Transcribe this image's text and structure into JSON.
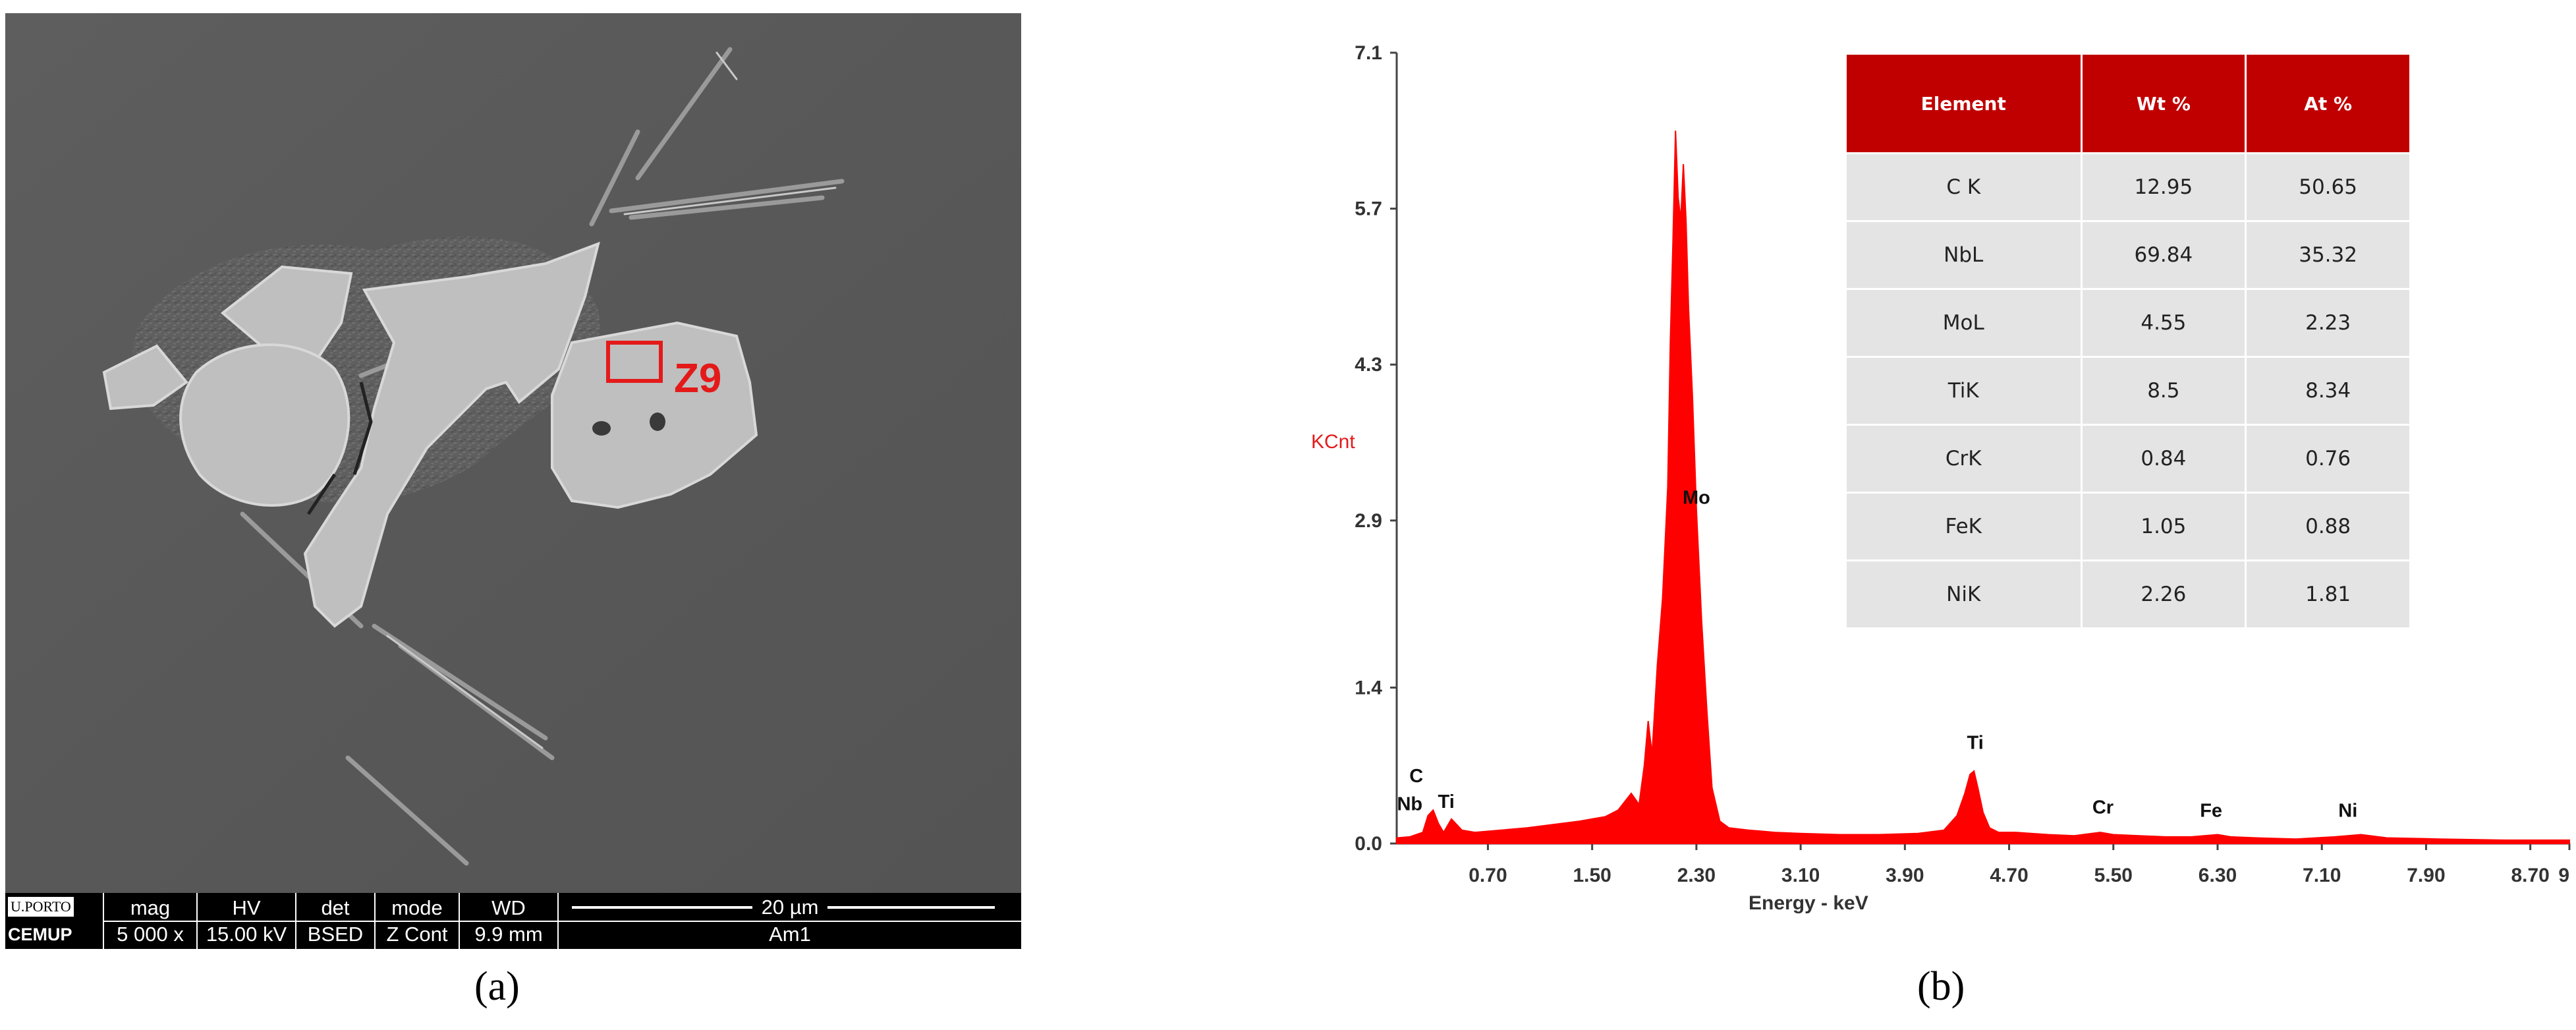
{
  "panel_a": {
    "caption": "(a)",
    "region_label": "Z9",
    "databar": {
      "logo_top": "U.PORTO",
      "logo_bottom": "CEMUP",
      "cells": [
        {
          "header": "mag",
          "value": "5 000 x"
        },
        {
          "header": "HV",
          "value": "15.00 kV"
        },
        {
          "header": "det",
          "value": "BSED"
        },
        {
          "header": "mode",
          "value": "Z Cont"
        },
        {
          "header": "WD",
          "value": "9.9 mm"
        }
      ],
      "scale": "20 µm",
      "sample": "Am1"
    }
  },
  "panel_b": {
    "caption": "(b)",
    "table": {
      "headers": [
        "Element",
        "Wt %",
        "At %"
      ],
      "rows": [
        [
          "C K",
          "12.95",
          "50.65"
        ],
        [
          "NbL",
          "69.84",
          "35.32"
        ],
        [
          "MoL",
          "4.55",
          "2.23"
        ],
        [
          "TiK",
          "8.5",
          "8.34"
        ],
        [
          "CrK",
          "0.84",
          "0.76"
        ],
        [
          "FeK",
          "1.05",
          "0.88"
        ],
        [
          "NiK",
          "2.26",
          "1.81"
        ]
      ]
    }
  },
  "chart_data": {
    "type": "area",
    "title": "",
    "xlabel": "Energy - keV",
    "ylabel": "KCnt",
    "xlim": [
      0,
      9
    ],
    "ylim": [
      0,
      7.1
    ],
    "x_ticks": [
      "0.70",
      "1.50",
      "2.30",
      "3.10",
      "3.90",
      "4.70",
      "5.50",
      "6.30",
      "7.10",
      "7.90",
      "8.70",
      "9"
    ],
    "y_ticks": [
      "0.0",
      "1.4",
      "2.9",
      "4.3",
      "5.7",
      "7.1"
    ],
    "color": "#ff0000",
    "series": [
      {
        "x": [
          0.0,
          0.1,
          0.2,
          0.24,
          0.28,
          0.32,
          0.36,
          0.42,
          0.5,
          0.6,
          0.8,
          1.0,
          1.2,
          1.4,
          1.6,
          1.7,
          1.8,
          1.86,
          1.9,
          1.93,
          1.96,
          2.0,
          2.04,
          2.08,
          2.1,
          2.12,
          2.14,
          2.16,
          2.18,
          2.2,
          2.22,
          2.24,
          2.27,
          2.3,
          2.34,
          2.38,
          2.42,
          2.48,
          2.55,
          2.7,
          2.9,
          3.1,
          3.4,
          3.7,
          4.0,
          4.2,
          4.3,
          4.36,
          4.4,
          4.43,
          4.46,
          4.5,
          4.55,
          4.62,
          4.75,
          5.0,
          5.2,
          5.4,
          5.5,
          5.7,
          5.9,
          6.1,
          6.3,
          6.4,
          6.6,
          6.9,
          7.2,
          7.4,
          7.6,
          8.0,
          8.5,
          9.0
        ],
        "y": [
          0.05,
          0.06,
          0.1,
          0.25,
          0.3,
          0.18,
          0.1,
          0.22,
          0.12,
          0.1,
          0.12,
          0.14,
          0.17,
          0.2,
          0.24,
          0.3,
          0.45,
          0.35,
          0.7,
          1.1,
          0.8,
          1.6,
          2.2,
          3.2,
          4.5,
          5.4,
          6.4,
          5.8,
          5.6,
          6.1,
          5.6,
          4.8,
          4.0,
          3.0,
          2.0,
          1.2,
          0.5,
          0.2,
          0.14,
          0.12,
          0.1,
          0.09,
          0.08,
          0.08,
          0.09,
          0.12,
          0.25,
          0.45,
          0.62,
          0.65,
          0.5,
          0.28,
          0.14,
          0.1,
          0.1,
          0.08,
          0.07,
          0.1,
          0.08,
          0.07,
          0.06,
          0.06,
          0.08,
          0.06,
          0.05,
          0.04,
          0.06,
          0.08,
          0.05,
          0.04,
          0.03,
          0.03
        ]
      }
    ],
    "peak_labels": [
      {
        "text": "C",
        "x": 0.15,
        "y": 0.55
      },
      {
        "text": "Nb",
        "x": 0.1,
        "y": 0.3
      },
      {
        "text": "Ti",
        "x": 0.38,
        "y": 0.32
      },
      {
        "text": "Mo",
        "x": 2.3,
        "y": 3.05
      },
      {
        "text": "Ti",
        "x": 4.44,
        "y": 0.85
      },
      {
        "text": "Cr",
        "x": 5.42,
        "y": 0.27
      },
      {
        "text": "Fe",
        "x": 6.25,
        "y": 0.24
      },
      {
        "text": "Ni",
        "x": 7.3,
        "y": 0.24
      }
    ]
  }
}
